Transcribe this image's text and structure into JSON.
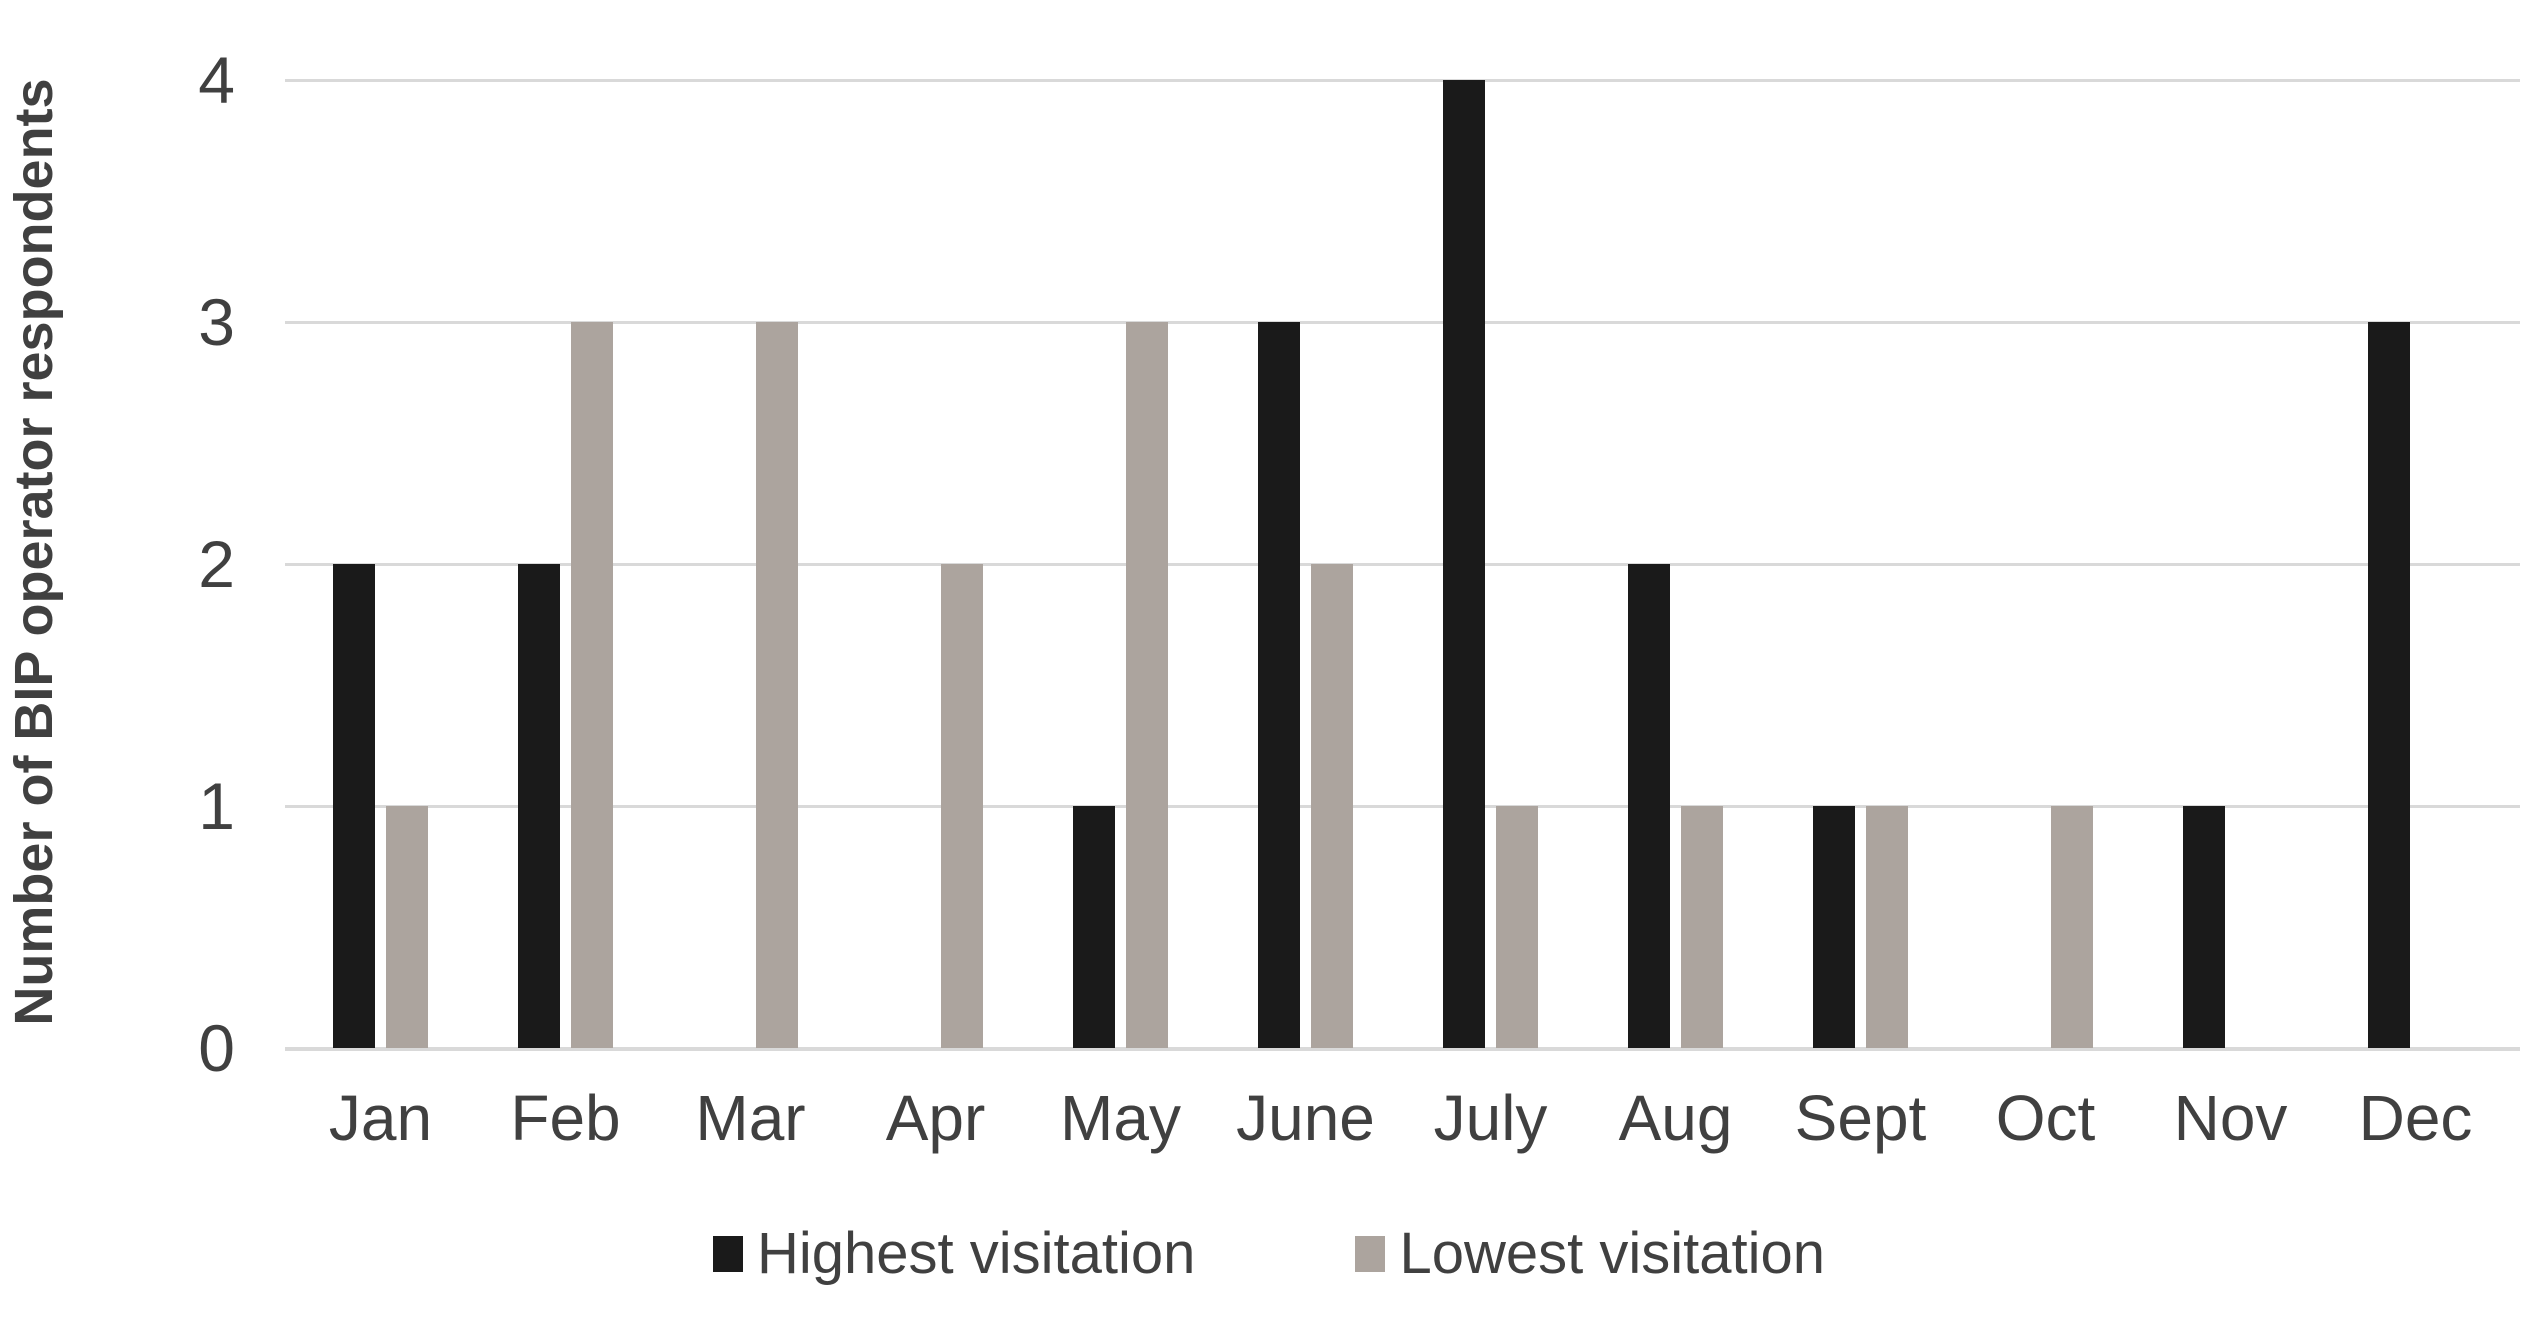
{
  "chart_data": {
    "type": "bar",
    "title": "",
    "categories": [
      "Jan",
      "Feb",
      "Mar",
      "Apr",
      "May",
      "June",
      "July",
      "Aug",
      "Sept",
      "Oct",
      "Nov",
      "Dec"
    ],
    "series": [
      {
        "name": "Highest visitation",
        "color": "#1a1a1a",
        "values": [
          2,
          2,
          0,
          0,
          1,
          3,
          4,
          2,
          1,
          0,
          1,
          3
        ]
      },
      {
        "name": "Lowest visitation",
        "color": "#aca49e",
        "values": [
          1,
          3,
          3,
          2,
          3,
          2,
          1,
          1,
          1,
          1,
          0,
          0
        ]
      }
    ],
    "xlabel": "",
    "ylabel": "Number of BIP operator respondents",
    "ylim": [
      0,
      4
    ],
    "yticks": [
      0,
      1,
      2,
      3,
      4
    ],
    "grid": true,
    "legend_position": "bottom",
    "gridline_color": "#d9d9d9",
    "axis_text_color": "#404040",
    "background_color": "#ffffff"
  }
}
